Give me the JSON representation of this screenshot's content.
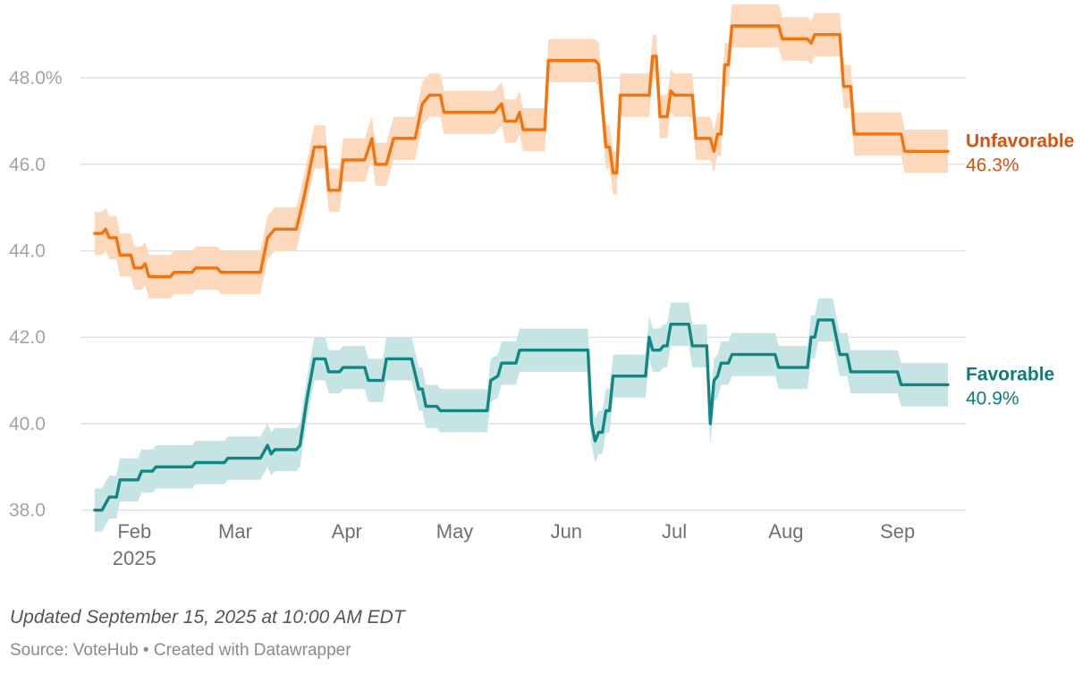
{
  "chart_data": {
    "type": "line",
    "title": "",
    "xlabel": "",
    "ylabel": "",
    "ylim": [
      37.6,
      49.8
    ],
    "yticks": [
      38.0,
      40.0,
      42.0,
      44.0,
      46.0,
      48.0
    ],
    "ytick_labels": [
      "38.0",
      "40.0",
      "42.0",
      "44.0",
      "46.0",
      "48.0%"
    ],
    "x_domain": [
      "2025-01-21",
      "2025-09-15"
    ],
    "xticks": [
      {
        "date": "2025-02-01",
        "label": "Feb",
        "sublabel": "2025"
      },
      {
        "date": "2025-03-01",
        "label": "Mar",
        "sublabel": ""
      },
      {
        "date": "2025-04-01",
        "label": "Apr",
        "sublabel": ""
      },
      {
        "date": "2025-05-01",
        "label": "May",
        "sublabel": ""
      },
      {
        "date": "2025-06-01",
        "label": "Jun",
        "sublabel": ""
      },
      {
        "date": "2025-07-01",
        "label": "Jul",
        "sublabel": ""
      },
      {
        "date": "2025-08-01",
        "label": "Aug",
        "sublabel": ""
      },
      {
        "date": "2025-09-01",
        "label": "Sep",
        "sublabel": ""
      }
    ],
    "grid": true,
    "band_width": 0.5,
    "series": [
      {
        "name": "Unfavorable",
        "end_label": "Unfavorable",
        "end_value": "46.3%",
        "color": "#f5730d",
        "label_color": "#d15410",
        "band_color": "#fcd8bd",
        "points": [
          [
            "2025-01-21",
            44.4
          ],
          [
            "2025-01-23",
            44.4
          ],
          [
            "2025-01-24",
            44.5
          ],
          [
            "2025-01-25",
            44.3
          ],
          [
            "2025-01-27",
            44.3
          ],
          [
            "2025-01-28",
            43.9
          ],
          [
            "2025-01-31",
            43.9
          ],
          [
            "2025-02-01",
            43.6
          ],
          [
            "2025-02-03",
            43.6
          ],
          [
            "2025-02-04",
            43.7
          ],
          [
            "2025-02-05",
            43.4
          ],
          [
            "2025-02-11",
            43.4
          ],
          [
            "2025-02-12",
            43.5
          ],
          [
            "2025-02-17",
            43.5
          ],
          [
            "2025-02-18",
            43.6
          ],
          [
            "2025-02-24",
            43.6
          ],
          [
            "2025-02-25",
            43.5
          ],
          [
            "2025-03-08",
            43.5
          ],
          [
            "2025-03-10",
            44.3
          ],
          [
            "2025-03-12",
            44.5
          ],
          [
            "2025-03-18",
            44.5
          ],
          [
            "2025-03-20",
            45.2
          ],
          [
            "2025-03-23",
            46.4
          ],
          [
            "2025-03-26",
            46.4
          ],
          [
            "2025-03-27",
            45.4
          ],
          [
            "2025-03-30",
            45.4
          ],
          [
            "2025-03-31",
            46.1
          ],
          [
            "2025-04-06",
            46.1
          ],
          [
            "2025-04-08",
            46.6
          ],
          [
            "2025-04-09",
            46.0
          ],
          [
            "2025-04-12",
            46.0
          ],
          [
            "2025-04-14",
            46.6
          ],
          [
            "2025-04-20",
            46.6
          ],
          [
            "2025-04-22",
            47.4
          ],
          [
            "2025-04-24",
            47.6
          ],
          [
            "2025-04-27",
            47.6
          ],
          [
            "2025-04-28",
            47.2
          ],
          [
            "2025-05-12",
            47.2
          ],
          [
            "2025-05-14",
            47.4
          ],
          [
            "2025-05-15",
            47.0
          ],
          [
            "2025-05-18",
            47.0
          ],
          [
            "2025-05-19",
            47.2
          ],
          [
            "2025-05-20",
            46.8
          ],
          [
            "2025-05-26",
            46.8
          ],
          [
            "2025-05-27",
            48.4
          ],
          [
            "2025-06-09",
            48.4
          ],
          [
            "2025-06-10",
            48.3
          ],
          [
            "2025-06-12",
            46.4
          ],
          [
            "2025-06-13",
            46.4
          ],
          [
            "2025-06-14",
            45.8
          ],
          [
            "2025-06-15",
            45.8
          ],
          [
            "2025-06-16",
            47.6
          ],
          [
            "2025-06-24",
            47.6
          ],
          [
            "2025-06-25",
            48.5
          ],
          [
            "2025-06-26",
            48.5
          ],
          [
            "2025-06-27",
            47.1
          ],
          [
            "2025-06-29",
            47.1
          ],
          [
            "2025-06-30",
            47.7
          ],
          [
            "2025-07-01",
            47.6
          ],
          [
            "2025-07-06",
            47.6
          ],
          [
            "2025-07-07",
            46.6
          ],
          [
            "2025-07-11",
            46.6
          ],
          [
            "2025-07-12",
            46.3
          ],
          [
            "2025-07-13",
            46.7
          ],
          [
            "2025-07-14",
            46.7
          ],
          [
            "2025-07-15",
            48.3
          ],
          [
            "2025-07-16",
            48.3
          ],
          [
            "2025-07-17",
            49.2
          ],
          [
            "2025-07-30",
            49.2
          ],
          [
            "2025-07-31",
            48.9
          ],
          [
            "2025-08-07",
            48.9
          ],
          [
            "2025-08-08",
            48.8
          ],
          [
            "2025-08-09",
            49.0
          ],
          [
            "2025-08-16",
            49.0
          ],
          [
            "2025-08-17",
            47.8
          ],
          [
            "2025-08-19",
            47.8
          ],
          [
            "2025-08-20",
            46.7
          ],
          [
            "2025-09-02",
            46.7
          ],
          [
            "2025-09-03",
            46.3
          ],
          [
            "2025-09-15",
            46.3
          ]
        ]
      },
      {
        "name": "Favorable",
        "end_label": "Favorable",
        "end_value": "40.9%",
        "color": "#108785",
        "label_color": "#0c7c7a",
        "band_color": "#c6e4e3",
        "points": [
          [
            "2025-01-21",
            38.0
          ],
          [
            "2025-01-23",
            38.0
          ],
          [
            "2025-01-25",
            38.3
          ],
          [
            "2025-01-27",
            38.3
          ],
          [
            "2025-01-28",
            38.7
          ],
          [
            "2025-02-02",
            38.7
          ],
          [
            "2025-02-03",
            38.9
          ],
          [
            "2025-02-06",
            38.9
          ],
          [
            "2025-02-07",
            39.0
          ],
          [
            "2025-02-17",
            39.0
          ],
          [
            "2025-02-18",
            39.1
          ],
          [
            "2025-02-26",
            39.1
          ],
          [
            "2025-02-27",
            39.2
          ],
          [
            "2025-03-08",
            39.2
          ],
          [
            "2025-03-10",
            39.5
          ],
          [
            "2025-03-11",
            39.3
          ],
          [
            "2025-03-12",
            39.4
          ],
          [
            "2025-03-18",
            39.4
          ],
          [
            "2025-03-19",
            39.5
          ],
          [
            "2025-03-21",
            40.6
          ],
          [
            "2025-03-23",
            41.5
          ],
          [
            "2025-03-26",
            41.5
          ],
          [
            "2025-03-27",
            41.2
          ],
          [
            "2025-03-30",
            41.2
          ],
          [
            "2025-03-31",
            41.3
          ],
          [
            "2025-04-06",
            41.3
          ],
          [
            "2025-04-07",
            41.0
          ],
          [
            "2025-04-11",
            41.0
          ],
          [
            "2025-04-12",
            41.5
          ],
          [
            "2025-04-19",
            41.5
          ],
          [
            "2025-04-21",
            40.8
          ],
          [
            "2025-04-22",
            40.8
          ],
          [
            "2025-04-23",
            40.4
          ],
          [
            "2025-04-26",
            40.4
          ],
          [
            "2025-04-27",
            40.3
          ],
          [
            "2025-05-10",
            40.3
          ],
          [
            "2025-05-11",
            41.0
          ],
          [
            "2025-05-13",
            41.1
          ],
          [
            "2025-05-14",
            41.4
          ],
          [
            "2025-05-18",
            41.4
          ],
          [
            "2025-05-19",
            41.7
          ],
          [
            "2025-06-07",
            41.7
          ],
          [
            "2025-06-08",
            40.0
          ],
          [
            "2025-06-09",
            39.6
          ],
          [
            "2025-06-10",
            39.8
          ],
          [
            "2025-06-11",
            39.8
          ],
          [
            "2025-06-12",
            40.3
          ],
          [
            "2025-06-13",
            40.3
          ],
          [
            "2025-06-14",
            41.1
          ],
          [
            "2025-06-23",
            41.1
          ],
          [
            "2025-06-24",
            42.0
          ],
          [
            "2025-06-25",
            41.7
          ],
          [
            "2025-06-27",
            41.7
          ],
          [
            "2025-06-28",
            41.8
          ],
          [
            "2025-06-29",
            41.8
          ],
          [
            "2025-06-30",
            42.3
          ],
          [
            "2025-07-05",
            42.3
          ],
          [
            "2025-07-06",
            41.8
          ],
          [
            "2025-07-10",
            41.8
          ],
          [
            "2025-07-11",
            40.0
          ],
          [
            "2025-07-12",
            41.0
          ],
          [
            "2025-07-13",
            41.1
          ],
          [
            "2025-07-14",
            41.4
          ],
          [
            "2025-07-16",
            41.4
          ],
          [
            "2025-07-17",
            41.6
          ],
          [
            "2025-07-29",
            41.6
          ],
          [
            "2025-07-30",
            41.3
          ],
          [
            "2025-08-07",
            41.3
          ],
          [
            "2025-08-08",
            42.0
          ],
          [
            "2025-08-09",
            42.0
          ],
          [
            "2025-08-10",
            42.4
          ],
          [
            "2025-08-14",
            42.4
          ],
          [
            "2025-08-16",
            41.6
          ],
          [
            "2025-08-18",
            41.6
          ],
          [
            "2025-08-19",
            41.2
          ],
          [
            "2025-09-01",
            41.2
          ],
          [
            "2025-09-02",
            40.9
          ],
          [
            "2025-09-15",
            40.9
          ]
        ]
      }
    ]
  },
  "footer": {
    "updated": "Updated September 15, 2025 at 10:00 AM EDT",
    "source": "Source: VoteHub • Created with Datawrapper"
  }
}
